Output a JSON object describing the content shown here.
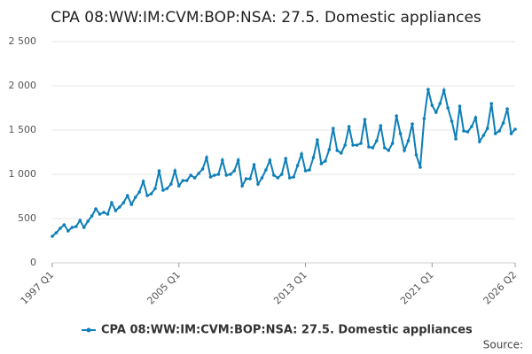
{
  "chart_data": {
    "type": "line",
    "title": "CPA 08:WW:IM:CVM:BOP:NSA: 27.5. Domestic appliances",
    "source": "Source:",
    "categories": [
      "1997 Q1",
      null,
      null,
      null,
      null,
      null,
      null,
      null,
      null,
      null,
      null,
      null,
      null,
      null,
      null,
      null,
      null,
      null,
      null,
      null,
      null,
      null,
      null,
      null,
      null,
      null,
      null,
      null,
      null,
      null,
      null,
      null,
      "2005 Q1",
      null,
      null,
      null,
      null,
      null,
      null,
      null,
      null,
      null,
      null,
      null,
      null,
      null,
      null,
      null,
      null,
      null,
      null,
      null,
      null,
      null,
      null,
      null,
      null,
      null,
      null,
      null,
      null,
      null,
      null,
      null,
      "2013 Q1",
      null,
      null,
      null,
      null,
      null,
      null,
      null,
      null,
      null,
      null,
      null,
      null,
      null,
      null,
      null,
      null,
      null,
      null,
      null,
      null,
      null,
      null,
      null,
      null,
      null,
      null,
      null,
      null,
      null,
      null,
      null,
      "2021 Q1",
      null,
      null,
      null,
      null,
      null,
      null,
      null,
      null,
      null,
      null,
      null,
      null,
      null,
      null,
      null,
      null,
      null,
      null,
      null,
      null,
      "2026 Q2"
    ],
    "series": [
      {
        "name": "CPA 08:WW:IM:CVM:BOP:NSA: 27.5. Domestic appliances",
        "color": "#0e7fb8",
        "values": [
          300,
          340,
          390,
          430,
          360,
          400,
          410,
          480,
          400,
          470,
          530,
          610,
          550,
          570,
          550,
          680,
          590,
          630,
          680,
          760,
          660,
          740,
          800,
          920,
          760,
          780,
          840,
          1040,
          820,
          840,
          890,
          1040,
          870,
          930,
          930,
          990,
          960,
          1010,
          1060,
          1190,
          970,
          990,
          1000,
          1160,
          990,
          1000,
          1040,
          1160,
          870,
          950,
          950,
          1110,
          890,
          960,
          1050,
          1160,
          990,
          960,
          1000,
          1180,
          960,
          970,
          1100,
          1230,
          1040,
          1050,
          1190,
          1390,
          1120,
          1150,
          1280,
          1520,
          1270,
          1240,
          1330,
          1540,
          1330,
          1330,
          1350,
          1620,
          1310,
          1300,
          1380,
          1550,
          1300,
          1270,
          1350,
          1660,
          1460,
          1270,
          1380,
          1570,
          1220,
          1080,
          1630,
          1960,
          1780,
          1700,
          1800,
          1950,
          1750,
          1600,
          1400,
          1770,
          1490,
          1480,
          1540,
          1640,
          1370,
          1440,
          1520,
          1800,
          1460,
          1490,
          1580,
          1740,
          1460,
          1510
        ]
      }
    ],
    "ylim": [
      0,
      2500
    ],
    "yticks": [
      0,
      500,
      {
        "value": 1000,
        "label": "1 000"
      },
      {
        "value": 1500,
        "label": "1 500"
      },
      {
        "value": 2000,
        "label": "2 000"
      },
      {
        "value": 2500,
        "label": "2 500"
      }
    ],
    "grid": true
  }
}
